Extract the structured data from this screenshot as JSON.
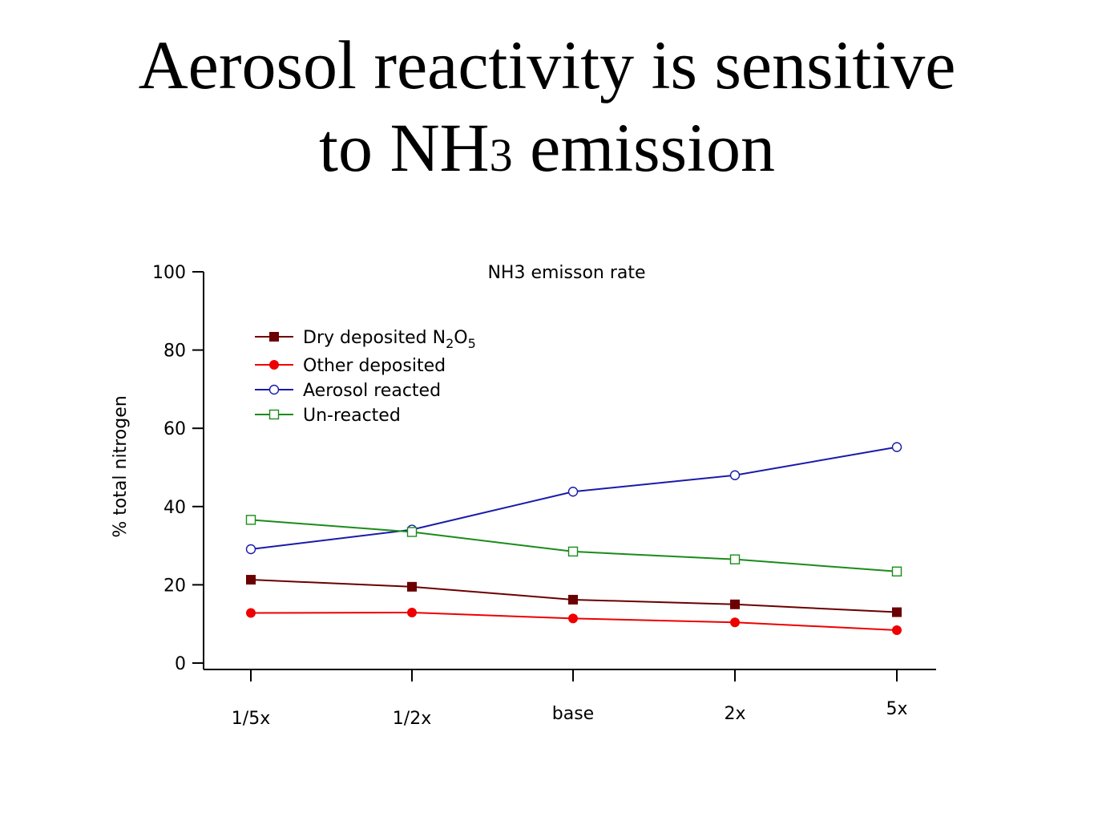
{
  "slide": {
    "title_line1": "Aerosol reactivity is sensitive",
    "title_line2_prefix": "to NH",
    "title_line2_subscript": "3",
    "title_line2_suffix": " emission"
  },
  "chart_data": {
    "type": "line",
    "title": "NH3 emisson rate",
    "xlabel": "",
    "ylabel": "% total nitrogen",
    "categories": [
      "1/5x",
      "1/2x",
      "base",
      "2x",
      "5x"
    ],
    "ylim": [
      0,
      100
    ],
    "yticks": [
      0,
      20,
      40,
      60,
      80,
      100
    ],
    "grid": false,
    "legend_position": "top-left",
    "series": [
      {
        "name": "Dry deposited N2O5",
        "legend_parts": [
          {
            "text": "Dry deposited N",
            "sub": false
          },
          {
            "text": "2",
            "sub": true
          },
          {
            "text": "O",
            "sub": false
          },
          {
            "text": "5",
            "sub": true
          }
        ],
        "values": [
          21.3,
          19.5,
          16.2,
          15.0,
          13.0
        ],
        "color": "#6b0000",
        "marker": "square-filled"
      },
      {
        "name": "Other deposited",
        "values": [
          12.8,
          12.9,
          11.4,
          10.4,
          8.4
        ],
        "color": "#ee0000",
        "marker": "circle-filled"
      },
      {
        "name": "Aerosol reacted",
        "values": [
          29.1,
          34.1,
          43.8,
          48.0,
          55.2
        ],
        "color": "#1a1aaa",
        "marker": "circle-open"
      },
      {
        "name": "Un-reacted",
        "values": [
          36.6,
          33.5,
          28.5,
          26.5,
          23.4
        ],
        "color": "#1a8c1a",
        "marker": "square-open"
      }
    ]
  }
}
